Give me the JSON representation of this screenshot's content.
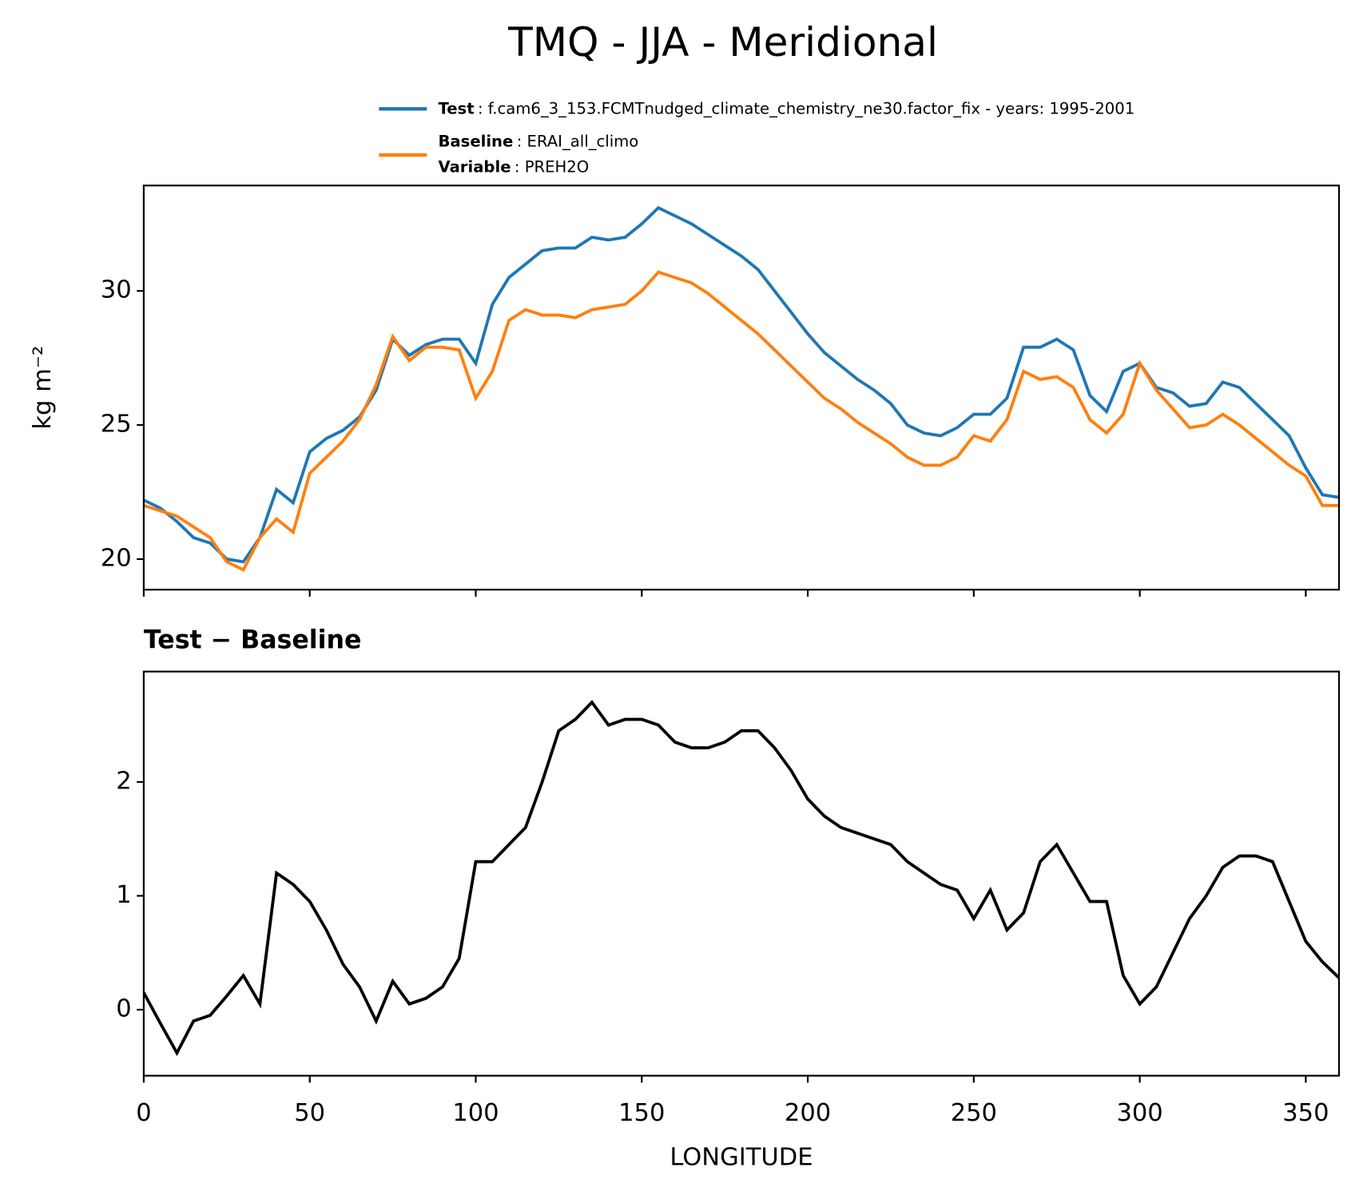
{
  "chart_data": [
    {
      "type": "line",
      "title": "TMQ - JJA - Meridional",
      "ylabel": "kg m⁻²",
      "x": [
        0,
        5,
        10,
        15,
        20,
        25,
        30,
        35,
        40,
        45,
        50,
        55,
        60,
        65,
        70,
        75,
        80,
        85,
        90,
        95,
        100,
        105,
        110,
        115,
        120,
        125,
        130,
        135,
        140,
        145,
        150,
        155,
        160,
        165,
        170,
        175,
        180,
        185,
        190,
        195,
        200,
        205,
        210,
        215,
        220,
        225,
        230,
        235,
        240,
        245,
        250,
        255,
        260,
        265,
        270,
        275,
        280,
        285,
        290,
        295,
        300,
        305,
        310,
        315,
        320,
        325,
        330,
        335,
        340,
        345,
        350,
        355,
        360
      ],
      "series": [
        {
          "name": "Test",
          "legend_text": ": f.cam6_3_153.FCMTnudged_climate_chemistry_ne30.factor_fix - years: 1995-2001",
          "color": "#1f77b4",
          "values": [
            22.2,
            21.9,
            21.4,
            20.8,
            20.6,
            20.0,
            19.9,
            20.8,
            22.6,
            22.1,
            24.0,
            24.5,
            24.8,
            25.3,
            26.3,
            28.2,
            27.6,
            28.0,
            28.2,
            28.2,
            27.3,
            29.5,
            30.5,
            31.0,
            31.5,
            31.6,
            31.6,
            32.0,
            31.9,
            32.0,
            32.5,
            33.1,
            32.8,
            32.5,
            32.1,
            31.7,
            31.3,
            30.8,
            30.0,
            29.2,
            28.4,
            27.7,
            27.2,
            26.7,
            26.3,
            25.8,
            25.0,
            24.7,
            24.6,
            24.9,
            25.4,
            25.4,
            26.0,
            27.9,
            27.9,
            28.2,
            27.8,
            26.1,
            25.5,
            27.0,
            27.3,
            26.4,
            26.2,
            25.7,
            25.8,
            26.6,
            26.4,
            25.8,
            25.2,
            24.6,
            23.4,
            22.4,
            22.3
          ]
        },
        {
          "name": "Baseline",
          "legend_text": ": ERAI_all_climo",
          "color": "#ff7f0e",
          "values": [
            22.0,
            21.8,
            21.6,
            21.2,
            20.8,
            19.9,
            19.6,
            20.8,
            21.5,
            21.0,
            23.2,
            23.8,
            24.4,
            25.2,
            26.5,
            28.3,
            27.4,
            27.9,
            27.9,
            27.8,
            26.0,
            27.0,
            28.9,
            29.3,
            29.1,
            29.1,
            29.0,
            29.3,
            29.4,
            29.5,
            30.0,
            30.7,
            30.5,
            30.3,
            29.9,
            29.4,
            28.9,
            28.4,
            27.8,
            27.2,
            26.6,
            26.0,
            25.6,
            25.1,
            24.7,
            24.3,
            23.8,
            23.5,
            23.5,
            23.8,
            24.6,
            24.4,
            25.2,
            27.0,
            26.7,
            26.8,
            26.4,
            25.2,
            24.7,
            25.4,
            27.3,
            26.3,
            25.6,
            24.9,
            25.0,
            25.4,
            25.0,
            24.5,
            24.0,
            23.5,
            23.1,
            22.0,
            22.0
          ]
        }
      ],
      "legend_extra": {
        "label": "Variable",
        "text": ": PREH2O"
      },
      "xlim": [
        0,
        360
      ],
      "ylim": [
        18.86,
        33.93
      ],
      "yticks": [
        20,
        25,
        30
      ]
    },
    {
      "type": "line",
      "title": "Test − Baseline",
      "xlabel": "LONGITUDE",
      "color": "#000000",
      "x": [
        0,
        5,
        10,
        15,
        20,
        25,
        30,
        35,
        40,
        45,
        50,
        55,
        60,
        65,
        70,
        75,
        80,
        85,
        90,
        95,
        100,
        105,
        110,
        115,
        120,
        125,
        130,
        135,
        140,
        145,
        150,
        155,
        160,
        165,
        170,
        175,
        180,
        185,
        190,
        195,
        200,
        205,
        210,
        215,
        220,
        225,
        230,
        235,
        240,
        245,
        250,
        255,
        260,
        265,
        270,
        275,
        280,
        285,
        290,
        295,
        300,
        305,
        310,
        315,
        320,
        325,
        330,
        335,
        340,
        345,
        350,
        355,
        360
      ],
      "values": [
        0.15,
        -0.12,
        -0.38,
        -0.1,
        -0.05,
        0.12,
        0.3,
        0.05,
        1.2,
        1.1,
        0.95,
        0.7,
        0.4,
        0.2,
        -0.1,
        0.25,
        0.05,
        0.1,
        0.2,
        0.45,
        1.3,
        1.3,
        1.45,
        1.6,
        2.0,
        2.45,
        2.55,
        2.7,
        2.5,
        2.55,
        2.55,
        2.5,
        2.35,
        2.3,
        2.3,
        2.35,
        2.45,
        2.45,
        2.3,
        2.1,
        1.85,
        1.7,
        1.6,
        1.55,
        1.5,
        1.45,
        1.3,
        1.2,
        1.1,
        1.05,
        0.8,
        1.05,
        0.7,
        0.85,
        1.3,
        1.45,
        1.2,
        0.95,
        0.95,
        0.3,
        0.05,
        0.2,
        0.5,
        0.8,
        1.0,
        1.25,
        1.35,
        1.35,
        1.3,
        0.95,
        0.6,
        0.42,
        0.28
      ],
      "xlim": [
        0,
        360
      ],
      "ylim": [
        -0.58,
        2.97
      ],
      "xticks": [
        0,
        50,
        100,
        150,
        200,
        250,
        300,
        350
      ],
      "yticks": [
        0,
        1,
        2
      ]
    }
  ]
}
